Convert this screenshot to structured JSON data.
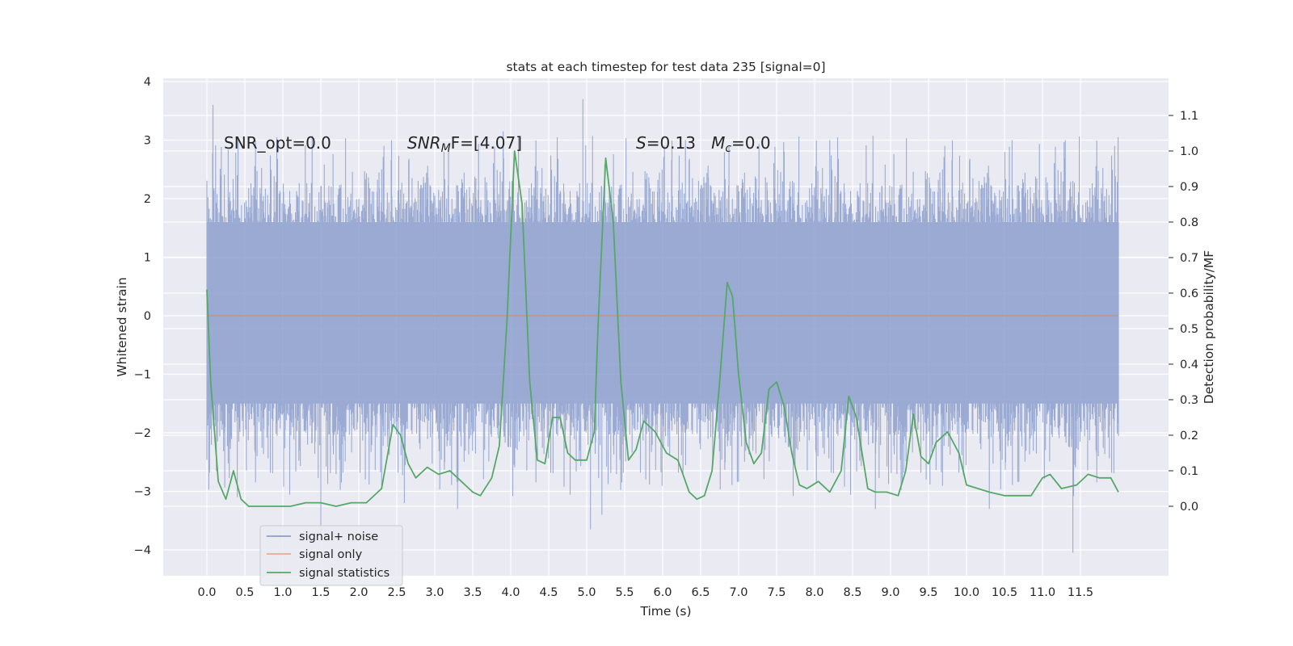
{
  "chart_data": {
    "type": "line",
    "title": "stats at each timestep for test data 235 [signal=0]",
    "xlabel": "Time (s)",
    "ylabel": "Whitened strain",
    "ylabel_right": "Detection probability/MF",
    "xlim": [
      -0.6,
      12.6
    ],
    "ylim": [
      -4.5,
      4.05
    ],
    "ylim_right": [
      -0.2,
      1.2
    ],
    "x_ticks": [
      0.0,
      0.5,
      1.0,
      1.5,
      2.0,
      2.5,
      3.0,
      3.5,
      4.0,
      4.5,
      5.0,
      5.5,
      6.0,
      6.5,
      7.0,
      7.5,
      8.0,
      8.5,
      9.0,
      9.5,
      10.0,
      10.5,
      11.0,
      11.5
    ],
    "x_tick_labels": [
      "0.0",
      "0.5",
      "1.0",
      "1.5",
      "2.0",
      "2.5",
      "3.0",
      "3.5",
      "4.0",
      "4.5",
      "5.0",
      "5.5",
      "6.0",
      "6.5",
      "7.0",
      "7.5",
      "8.0",
      "8.5",
      "9.0",
      "9.5",
      "10.0",
      "10.5",
      "11.0",
      "11.5"
    ],
    "y_ticks": [
      4,
      3,
      2,
      1,
      0,
      -1,
      -2,
      -3,
      -4
    ],
    "y_tick_labels": [
      "4",
      "3",
      "2",
      "1",
      "0",
      "−1",
      "−2",
      "−3",
      "−4"
    ],
    "y_ticks_right": [
      0.0,
      0.1,
      0.2,
      0.3,
      0.4,
      0.5,
      0.6,
      0.7,
      0.8,
      0.9,
      1.0,
      1.1
    ],
    "y_tick_labels_right": [
      "0.0",
      "0.1",
      "0.2",
      "0.3",
      "0.4",
      "0.5",
      "0.6",
      "0.7",
      "0.8",
      "0.9",
      "1.0",
      "1.1"
    ],
    "grid": true,
    "legend_position": "lower-left",
    "noise": {
      "name": "signal+ noise",
      "color": "#8c9fcc",
      "time_range": [
        0.0,
        12.0
      ],
      "typical_range": [
        -1.5,
        1.6
      ],
      "peaks": [
        {
          "x": 0.08,
          "y": 3.6
        },
        {
          "x": 1.5,
          "y": -3.75
        },
        {
          "x": 3.9,
          "y": 3.15
        },
        {
          "x": 4.95,
          "y": 3.7
        },
        {
          "x": 5.05,
          "y": -3.65
        },
        {
          "x": 11.4,
          "y": -4.05
        },
        {
          "x": 10.6,
          "y": 3.0
        },
        {
          "x": 11.3,
          "y": 3.0
        },
        {
          "x": 11.95,
          "y": 2.9
        },
        {
          "x": 8.2,
          "y": 3.0
        },
        {
          "x": 6.3,
          "y": 3.0
        },
        {
          "x": 7.6,
          "y": 2.8
        },
        {
          "x": 3.3,
          "y": -3.3
        },
        {
          "x": 5.2,
          "y": -3.4
        },
        {
          "x": 8.8,
          "y": -3.3
        },
        {
          "x": 2.6,
          "y": -3.2
        },
        {
          "x": 0.4,
          "y": -3.1
        },
        {
          "x": 10.3,
          "y": -3.3
        }
      ]
    },
    "signal_only": {
      "name": "signal only",
      "color": "#dd8452",
      "x": [
        0.0,
        12.0
      ],
      "y": [
        0.0,
        0.0
      ]
    },
    "statistics": {
      "name": "signal statistics",
      "color": "#55a868",
      "x": [
        0.0,
        0.05,
        0.15,
        0.25,
        0.35,
        0.45,
        0.55,
        0.7,
        0.9,
        1.1,
        1.3,
        1.5,
        1.7,
        1.9,
        2.1,
        2.3,
        2.45,
        2.55,
        2.65,
        2.75,
        2.9,
        3.05,
        3.2,
        3.35,
        3.5,
        3.6,
        3.75,
        3.85,
        3.95,
        4.05,
        4.15,
        4.25,
        4.35,
        4.45,
        4.55,
        4.65,
        4.75,
        4.85,
        5.0,
        5.1,
        5.15,
        5.25,
        5.35,
        5.45,
        5.55,
        5.65,
        5.75,
        5.9,
        6.05,
        6.2,
        6.35,
        6.45,
        6.55,
        6.65,
        6.75,
        6.85,
        6.92,
        7.0,
        7.1,
        7.2,
        7.3,
        7.4,
        7.5,
        7.6,
        7.7,
        7.8,
        7.9,
        8.05,
        8.2,
        8.35,
        8.45,
        8.55,
        8.7,
        8.8,
        8.95,
        9.1,
        9.2,
        9.3,
        9.4,
        9.5,
        9.6,
        9.75,
        9.9,
        10.0,
        10.15,
        10.3,
        10.5,
        10.7,
        10.85,
        11.0,
        11.1,
        11.25,
        11.45,
        11.6,
        11.75,
        11.9,
        12.0
      ],
      "y": [
        0.61,
        0.35,
        0.07,
        0.02,
        0.1,
        0.02,
        0.0,
        0.0,
        0.0,
        0.0,
        0.01,
        0.01,
        0.0,
        0.01,
        0.01,
        0.05,
        0.23,
        0.2,
        0.12,
        0.08,
        0.11,
        0.09,
        0.1,
        0.07,
        0.04,
        0.03,
        0.08,
        0.17,
        0.52,
        1.0,
        0.85,
        0.35,
        0.13,
        0.12,
        0.25,
        0.25,
        0.15,
        0.13,
        0.13,
        0.21,
        0.51,
        0.98,
        0.8,
        0.35,
        0.13,
        0.16,
        0.24,
        0.21,
        0.15,
        0.13,
        0.04,
        0.02,
        0.03,
        0.1,
        0.35,
        0.63,
        0.59,
        0.37,
        0.18,
        0.12,
        0.15,
        0.33,
        0.35,
        0.28,
        0.15,
        0.06,
        0.05,
        0.07,
        0.04,
        0.1,
        0.31,
        0.25,
        0.05,
        0.04,
        0.04,
        0.03,
        0.1,
        0.26,
        0.14,
        0.12,
        0.18,
        0.21,
        0.15,
        0.06,
        0.05,
        0.04,
        0.03,
        0.03,
        0.03,
        0.08,
        0.09,
        0.05,
        0.06,
        0.09,
        0.08,
        0.08,
        0.04
      ]
    },
    "annotations": [
      {
        "key": "snr_opt",
        "text": "SNR_opt=0.0"
      },
      {
        "key": "snr_mf",
        "text": "SNR_MF=[4.07]"
      },
      {
        "key": "s_mc",
        "text": "S=0.13   M_c=0.0"
      }
    ]
  },
  "annotation_text": {
    "snr_opt": "SNR_opt=0.0",
    "snr_main": "SNR",
    "snr_sub": "M",
    "snr_rest": "F=[4.07]",
    "s_main": "S",
    "s_rest": "=0.13   ",
    "m_main": "M",
    "m_sub": "c",
    "m_rest": "=0.0"
  },
  "colors": {
    "plot_background": "#eaeaf2",
    "grid": "#ffffff"
  }
}
